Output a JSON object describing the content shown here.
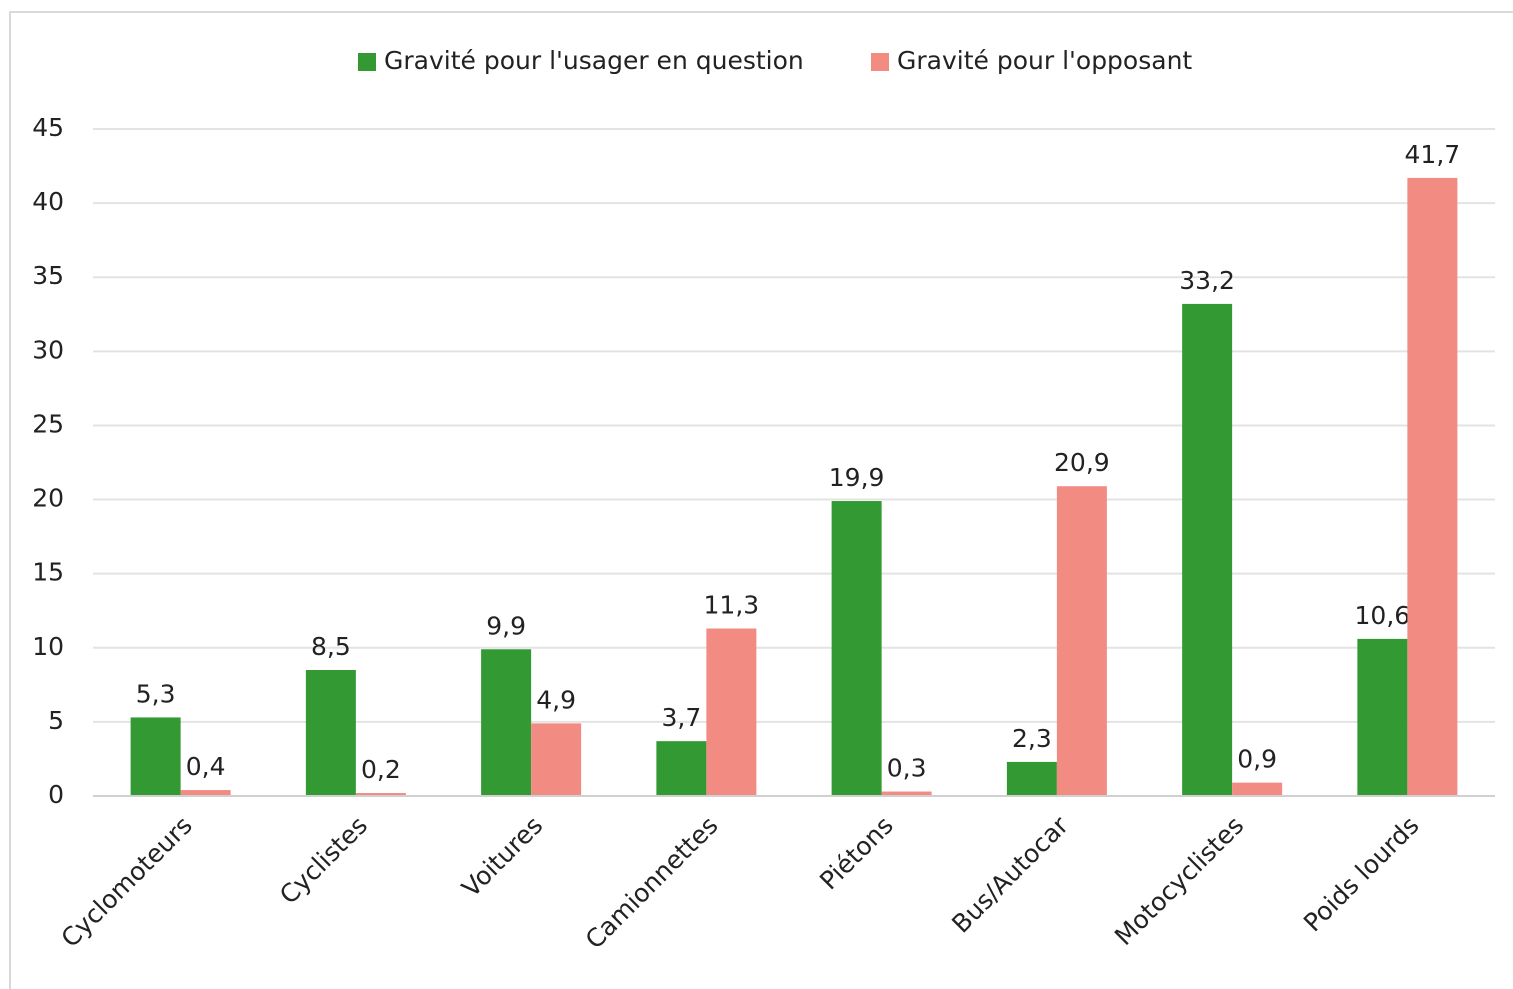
{
  "chart_data": {
    "type": "bar",
    "categories": [
      "Cyclomoteurs",
      "Cyclistes",
      "Voitures",
      "Camionnettes",
      "Piétons",
      "Bus/Autocar",
      "Motocyclistes",
      "Poids lourds"
    ],
    "series": [
      {
        "name": "Gravité pour l'usager en question",
        "color": "#339933",
        "values": [
          5.3,
          8.5,
          9.9,
          3.7,
          19.9,
          2.3,
          33.2,
          10.6
        ],
        "value_labels": [
          "5,3",
          "8,5",
          "9,9",
          "3,7",
          "19,9",
          "2,3",
          "33,2",
          "10,6"
        ]
      },
      {
        "name": "Gravité pour l'opposant",
        "color": "#f28b82",
        "values": [
          0.4,
          0.2,
          4.9,
          11.3,
          0.3,
          20.9,
          0.9,
          41.7
        ],
        "value_labels": [
          "0,4",
          "0,2",
          "4,9",
          "11,3",
          "0,3",
          "20,9",
          "0,9",
          "41,7"
        ]
      }
    ],
    "ylim": [
      0,
      45
    ],
    "yticks": [
      0,
      5,
      10,
      15,
      20,
      25,
      30,
      35,
      40,
      45
    ],
    "grid": true,
    "legend": "top"
  }
}
